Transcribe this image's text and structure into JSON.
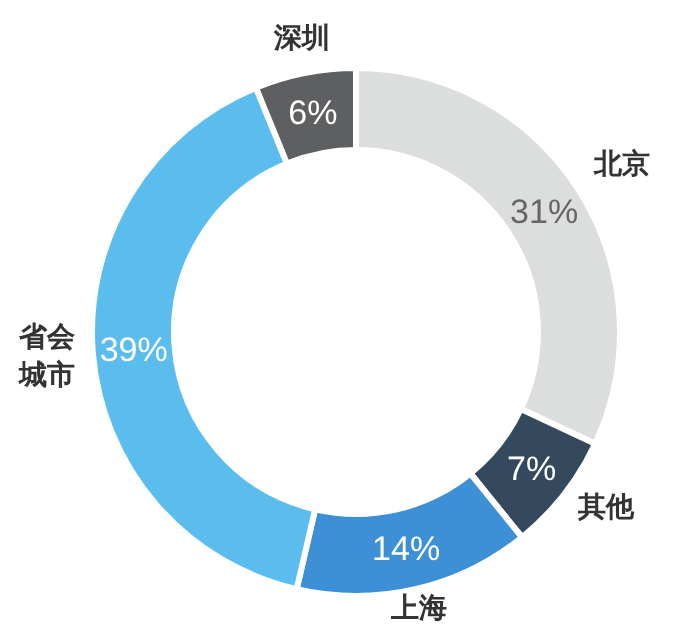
{
  "chart_data": {
    "type": "donut",
    "categories": [
      "北京",
      "其他",
      "上海",
      "省会城市",
      "深圳"
    ],
    "values": [
      31,
      7,
      14,
      39,
      6
    ],
    "colors": [
      "#dcdddd",
      "#34495e",
      "#3d8fd6",
      "#5bbcee",
      "#5d5f61"
    ],
    "value_labels": [
      "31%",
      "7%",
      "14%",
      "39%",
      "6%"
    ]
  }
}
